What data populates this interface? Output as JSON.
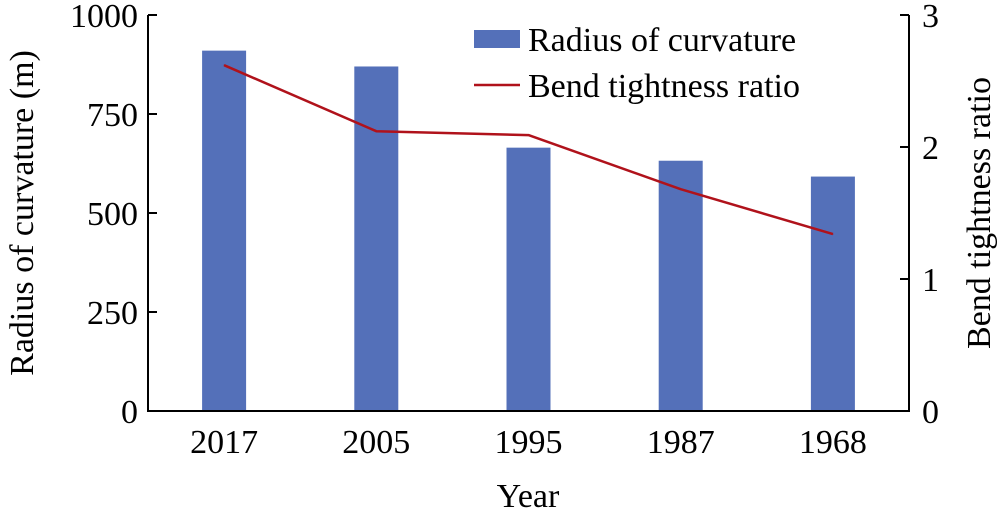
{
  "chart_data": {
    "type": "bar",
    "categories": [
      "2017",
      "2005",
      "1995",
      "1987",
      "1968"
    ],
    "xlabel": "Year",
    "ylabel_left": "Radius of curvature (m)",
    "ylabel_right": "Bend tightness ratio",
    "ylim_left": [
      0,
      1000
    ],
    "yticks_left": [
      0,
      250,
      500,
      750,
      1000
    ],
    "ylim_right": [
      0,
      3
    ],
    "yticks_right": [
      0,
      1,
      2,
      3
    ],
    "grid": false,
    "legend_position": "top-right",
    "series": [
      {
        "name": "Radius of curvature",
        "type": "bar",
        "axis": "left",
        "color": "#5470b9",
        "values": [
          910,
          870,
          665,
          632,
          592
        ]
      },
      {
        "name": "Bend tightness ratio",
        "type": "line",
        "axis": "right",
        "color": "#b0121b",
        "values": [
          2.62,
          2.12,
          2.09,
          1.68,
          1.34
        ]
      }
    ]
  }
}
